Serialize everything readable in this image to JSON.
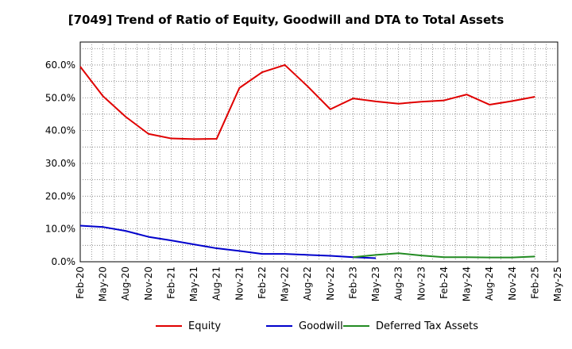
{
  "chart_data": {
    "type": "line",
    "title": "[7049]  Trend of Ratio of Equity, Goodwill and DTA to Total Assets",
    "xlabel": "",
    "ylabel": "",
    "ylim": [
      0,
      67
    ],
    "yticks": [
      0,
      10,
      20,
      30,
      40,
      50,
      60
    ],
    "ytick_labels": [
      "0.0%",
      "10.0%",
      "20.0%",
      "30.0%",
      "40.0%",
      "50.0%",
      "60.0%"
    ],
    "xticks": [
      "Feb-20",
      "May-20",
      "Aug-20",
      "Nov-20",
      "Feb-21",
      "May-21",
      "Aug-21",
      "Nov-21",
      "Feb-22",
      "May-22",
      "Aug-22",
      "Nov-22",
      "Feb-23",
      "May-23",
      "Aug-23",
      "Nov-23",
      "Feb-24",
      "May-24",
      "Aug-24",
      "Nov-24",
      "Feb-25",
      "May-25"
    ],
    "grid": true,
    "legend_position": "bottom",
    "series": [
      {
        "name": "Equity",
        "color": "#e00000",
        "start_index": 0,
        "values": [
          59.5,
          50.5,
          44.2,
          39.0,
          37.6,
          37.4,
          37.5,
          53.0,
          57.8,
          60.0,
          53.5,
          46.5,
          49.8,
          48.9,
          48.2,
          48.8,
          49.2,
          51.0,
          47.9,
          49.0,
          50.3
        ]
      },
      {
        "name": "Goodwill",
        "color": "#0000cc",
        "start_index": 0,
        "values": [
          11.0,
          10.6,
          9.4,
          7.6,
          6.5,
          5.3,
          4.1,
          3.3,
          2.4,
          2.4,
          2.1,
          1.8,
          1.4,
          1.1
        ]
      },
      {
        "name": "Deferred Tax Assets",
        "color": "#228b22",
        "start_index": 12,
        "values": [
          1.4,
          2.1,
          2.6,
          1.9,
          1.4,
          1.4,
          1.3,
          1.3,
          1.6
        ]
      }
    ]
  }
}
